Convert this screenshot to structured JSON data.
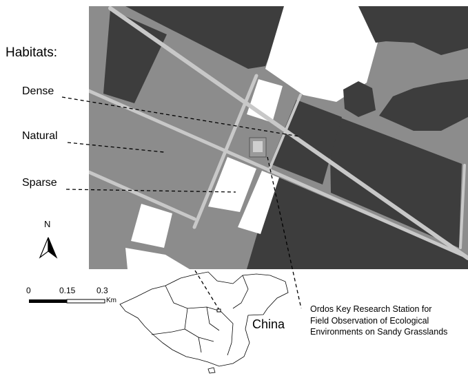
{
  "legend": {
    "title": "Habitats:",
    "items": [
      {
        "key": "dense",
        "label": "Dense"
      },
      {
        "key": "natural",
        "label": "Natural"
      },
      {
        "key": "sparse",
        "label": "Sparse"
      }
    ]
  },
  "north_arrow": {
    "label": "N"
  },
  "scale_bar": {
    "ticks": [
      "0",
      "0.15",
      "0.3"
    ],
    "unit": "Km"
  },
  "inset": {
    "country_label": "China"
  },
  "station": {
    "lines": [
      "Ordos Key Research Station for",
      "Field Observation of Ecological",
      "Environments on Sandy Grasslands"
    ]
  },
  "colors": {
    "dense": "#3d3d3d",
    "natural": "#8c8c8c",
    "sparse": "#ffffff",
    "road": "#c8c8c8"
  }
}
